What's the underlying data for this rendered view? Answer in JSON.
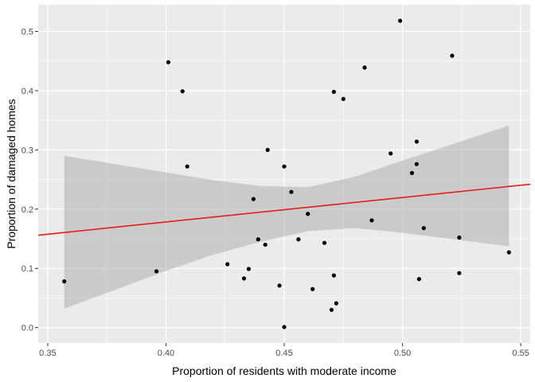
{
  "chart_data": {
    "type": "scatter",
    "title": "",
    "xlabel": "Proportion of residents with moderate income",
    "ylabel": "Proportion of damaged homes",
    "xlim": [
      0.346,
      0.554
    ],
    "ylim": [
      -0.026,
      0.545
    ],
    "x_ticks": [
      0.35,
      0.4,
      0.45,
      0.5,
      0.55
    ],
    "x_tick_labels": [
      "0.35",
      "0.40",
      "0.45",
      "0.50",
      "0.55"
    ],
    "y_ticks": [
      0.0,
      0.1,
      0.2,
      0.3,
      0.4,
      0.5
    ],
    "y_tick_labels": [
      "0.0",
      "0.1",
      "0.2",
      "0.3",
      "0.4",
      "0.5"
    ],
    "grid": true,
    "points": [
      {
        "x": 0.357,
        "y": 0.078
      },
      {
        "x": 0.396,
        "y": 0.095
      },
      {
        "x": 0.401,
        "y": 0.448
      },
      {
        "x": 0.407,
        "y": 0.399
      },
      {
        "x": 0.409,
        "y": 0.272
      },
      {
        "x": 0.426,
        "y": 0.107
      },
      {
        "x": 0.433,
        "y": 0.083
      },
      {
        "x": 0.435,
        "y": 0.099
      },
      {
        "x": 0.437,
        "y": 0.217
      },
      {
        "x": 0.439,
        "y": 0.149
      },
      {
        "x": 0.442,
        "y": 0.14
      },
      {
        "x": 0.443,
        "y": 0.3
      },
      {
        "x": 0.448,
        "y": 0.071
      },
      {
        "x": 0.45,
        "y": 0.272
      },
      {
        "x": 0.45,
        "y": 0.001
      },
      {
        "x": 0.453,
        "y": 0.229
      },
      {
        "x": 0.456,
        "y": 0.149
      },
      {
        "x": 0.46,
        "y": 0.192
      },
      {
        "x": 0.462,
        "y": 0.065
      },
      {
        "x": 0.467,
        "y": 0.143
      },
      {
        "x": 0.47,
        "y": 0.03
      },
      {
        "x": 0.471,
        "y": 0.398
      },
      {
        "x": 0.471,
        "y": 0.088
      },
      {
        "x": 0.472,
        "y": 0.041
      },
      {
        "x": 0.475,
        "y": 0.386
      },
      {
        "x": 0.484,
        "y": 0.439
      },
      {
        "x": 0.487,
        "y": 0.181
      },
      {
        "x": 0.495,
        "y": 0.294
      },
      {
        "x": 0.499,
        "y": 0.518
      },
      {
        "x": 0.504,
        "y": 0.261
      },
      {
        "x": 0.506,
        "y": 0.314
      },
      {
        "x": 0.506,
        "y": 0.276
      },
      {
        "x": 0.507,
        "y": 0.082
      },
      {
        "x": 0.509,
        "y": 0.168
      },
      {
        "x": 0.521,
        "y": 0.459
      },
      {
        "x": 0.524,
        "y": 0.152
      },
      {
        "x": 0.524,
        "y": 0.092
      },
      {
        "x": 0.545,
        "y": 0.127
      }
    ],
    "fit_line": {
      "x": [
        0.346,
        0.554
      ],
      "y": [
        0.156,
        0.242
      ],
      "color": "#e41a1c"
    },
    "confidence_band": {
      "x": [
        0.357,
        0.38,
        0.4,
        0.42,
        0.44,
        0.46,
        0.48,
        0.5,
        0.52,
        0.545
      ],
      "upper": [
        0.29,
        0.275,
        0.262,
        0.249,
        0.239,
        0.237,
        0.255,
        0.282,
        0.308,
        0.341
      ],
      "lower": [
        0.032,
        0.066,
        0.096,
        0.123,
        0.145,
        0.163,
        0.168,
        0.16,
        0.15,
        0.137
      ],
      "color": "#999999"
    },
    "panel_color": "#ebebeb",
    "grid_color": "#ffffff",
    "point_color": "#000000"
  }
}
